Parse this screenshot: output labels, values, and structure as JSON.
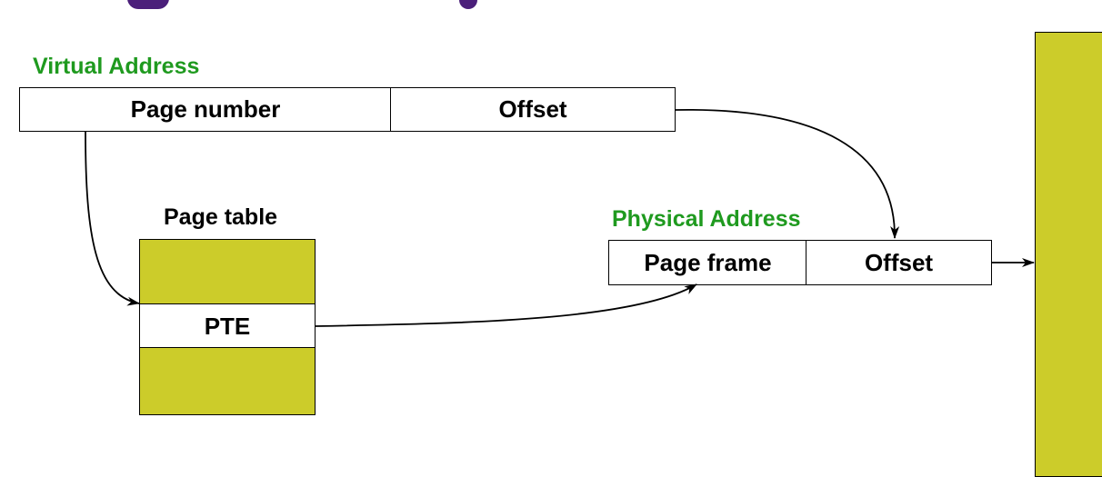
{
  "virtual_address": {
    "heading": "Virtual Address",
    "page_number": "Page number",
    "offset": "Offset"
  },
  "page_table": {
    "heading": "Page table",
    "entry": "PTE"
  },
  "physical_address": {
    "heading": "Physical Address",
    "page_frame": "Page frame",
    "offset": "Offset"
  },
  "colors": {
    "heading_green": "#1f9a1f",
    "olive_fill": "#cccc2a",
    "title_purple": "#4b1f7a"
  }
}
